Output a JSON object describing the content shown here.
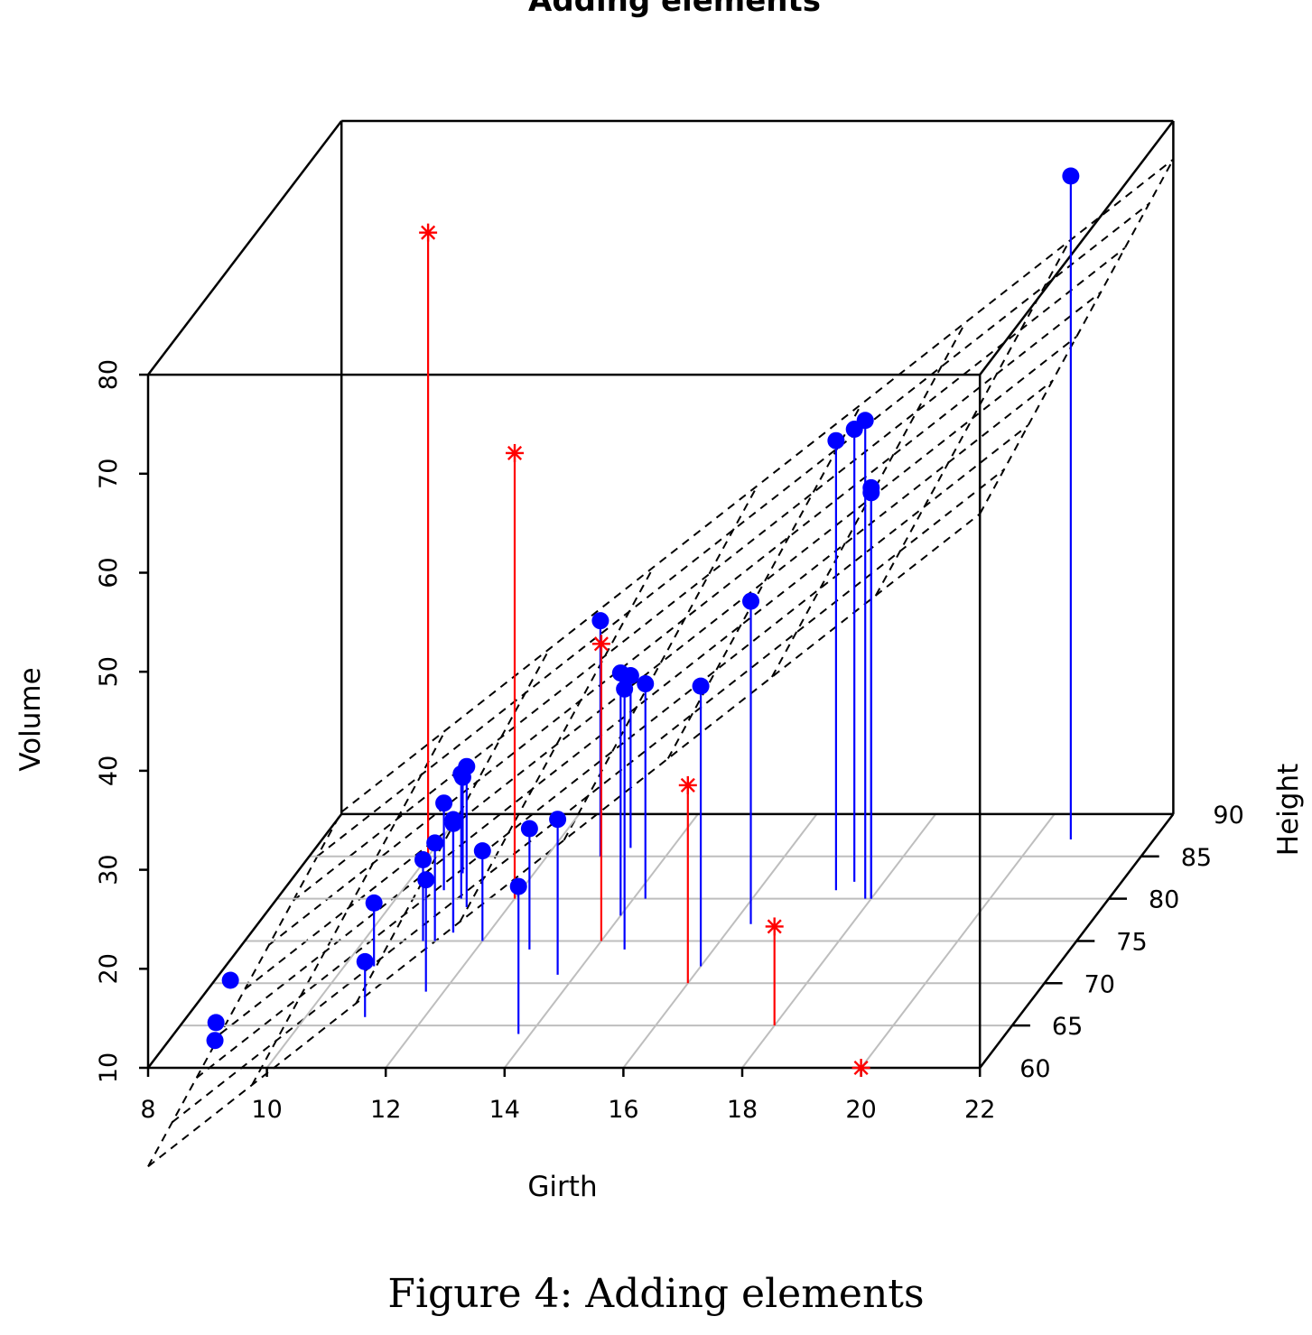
{
  "figure": {
    "caption": "Figure 4: Adding elements"
  },
  "chart_data": {
    "type": "scatter3d",
    "title": "Adding elements",
    "xlabel": "Girth",
    "ylabel": "Height",
    "zlabel": "Volume",
    "xlim": [
      8,
      22
    ],
    "ylim": [
      60,
      90
    ],
    "zlim": [
      10,
      80
    ],
    "x_ticks": [
      "8",
      "10",
      "12",
      "14",
      "16",
      "18",
      "20",
      "22"
    ],
    "y_ticks": [
      "60",
      "65",
      "70",
      "75",
      "80",
      "85",
      "90"
    ],
    "z_ticks": [
      "10",
      "20",
      "30",
      "40",
      "50",
      "60",
      "70",
      "80"
    ],
    "grid": "floor",
    "colors": {
      "points": "#0000ff",
      "added": "#ff0000",
      "box": "#000000",
      "grid": "#bebebe",
      "plane": "#000000"
    },
    "series": [
      {
        "marker": "filled-circle",
        "points": [
          [
            8.3,
            70,
            10.3
          ],
          [
            8.6,
            65,
            10.3
          ],
          [
            8.8,
            63,
            10.2
          ],
          [
            10.5,
            72,
            16.4
          ],
          [
            10.7,
            81,
            18.8
          ],
          [
            10.8,
            83,
            19.7
          ],
          [
            11.0,
            66,
            15.6
          ],
          [
            11.0,
            75,
            18.2
          ],
          [
            11.1,
            80,
            22.6
          ],
          [
            11.2,
            75,
            19.9
          ],
          [
            11.3,
            79,
            24.2
          ],
          [
            11.4,
            76,
            21.0
          ],
          [
            11.4,
            76,
            21.4
          ],
          [
            11.7,
            69,
            21.3
          ],
          [
            12.0,
            75,
            19.1
          ],
          [
            12.9,
            74,
            22.2
          ],
          [
            12.9,
            85,
            33.8
          ],
          [
            13.3,
            86,
            27.4
          ],
          [
            13.7,
            71,
            25.7
          ],
          [
            13.8,
            64,
            24.9
          ],
          [
            14.0,
            78,
            34.5
          ],
          [
            14.2,
            80,
            31.7
          ],
          [
            14.5,
            74,
            36.3
          ],
          [
            16.0,
            72,
            38.3
          ],
          [
            16.3,
            77,
            42.6
          ],
          [
            17.3,
            81,
            55.4
          ],
          [
            17.5,
            82,
            55.7
          ],
          [
            17.9,
            80,
            58.3
          ],
          [
            18.0,
            80,
            51.5
          ],
          [
            18.0,
            80,
            51.0
          ],
          [
            20.6,
            87,
            77.0
          ]
        ]
      },
      {
        "marker": "asterisk",
        "points": [
          [
            10.0,
            85,
            73.0
          ],
          [
            12.0,
            80,
            55.0
          ],
          [
            14.0,
            75,
            40.0
          ],
          [
            16.0,
            70,
            30.0
          ],
          [
            18.0,
            65,
            20.0
          ],
          [
            20.0,
            60,
            10.0
          ]
        ]
      }
    ],
    "regression_plane": {
      "style": "dashed"
    }
  }
}
